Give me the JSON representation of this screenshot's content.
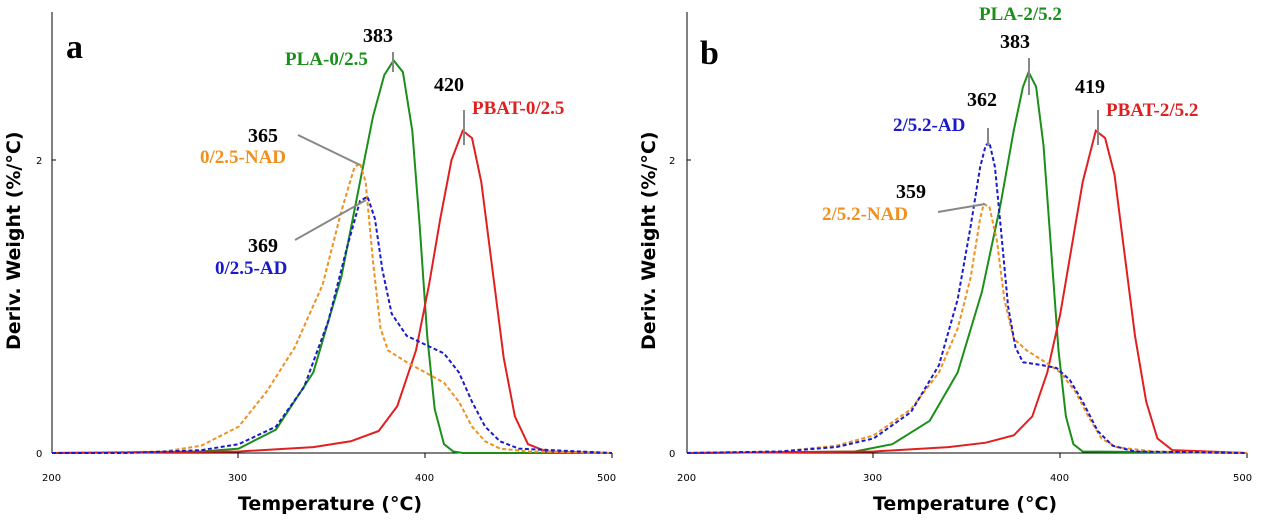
{
  "chart_data": [
    {
      "type": "line",
      "panel_label": "a",
      "xlabel": "Temperature (°C)",
      "ylabel": "Deriv. Weight (%/°C)",
      "xlim": [
        200,
        500
      ],
      "ylim": [
        0,
        2.9
      ],
      "xticks": [
        "200",
        "300",
        "400",
        "500"
      ],
      "yticks": [
        "0",
        "2"
      ],
      "series": [
        {
          "name": "PLA-0/2.5",
          "color": "#1a8f1a",
          "style": "solid",
          "points": [
            [
              200,
              0
            ],
            [
              280,
              0.01
            ],
            [
              300,
              0.03
            ],
            [
              320,
              0.16
            ],
            [
              340,
              0.55
            ],
            [
              355,
              1.2
            ],
            [
              365,
              1.85
            ],
            [
              372,
              2.3
            ],
            [
              378,
              2.58
            ],
            [
              383,
              2.68
            ],
            [
              388,
              2.6
            ],
            [
              393,
              2.2
            ],
            [
              397,
              1.55
            ],
            [
              401,
              0.8
            ],
            [
              405,
              0.3
            ],
            [
              410,
              0.06
            ],
            [
              415,
              0.01
            ],
            [
              420,
              0
            ],
            [
              500,
              0
            ]
          ]
        },
        {
          "name": "PBAT-0/2.5",
          "color": "#e02020",
          "style": "solid",
          "points": [
            [
              200,
              0
            ],
            [
              300,
              0.01
            ],
            [
              340,
              0.04
            ],
            [
              360,
              0.08
            ],
            [
              375,
              0.15
            ],
            [
              385,
              0.32
            ],
            [
              395,
              0.7
            ],
            [
              402,
              1.15
            ],
            [
              408,
              1.6
            ],
            [
              414,
              2.0
            ],
            [
              420,
              2.2
            ],
            [
              425,
              2.15
            ],
            [
              430,
              1.85
            ],
            [
              436,
              1.25
            ],
            [
              442,
              0.65
            ],
            [
              448,
              0.25
            ],
            [
              455,
              0.06
            ],
            [
              465,
              0.01
            ],
            [
              500,
              0
            ]
          ]
        },
        {
          "name": "0/2.5-NAD",
          "color": "#f0901e",
          "style": "dashed",
          "points": [
            [
              200,
              0
            ],
            [
              260,
              0.01
            ],
            [
              280,
              0.05
            ],
            [
              300,
              0.18
            ],
            [
              315,
              0.42
            ],
            [
              330,
              0.72
            ],
            [
              345,
              1.15
            ],
            [
              355,
              1.65
            ],
            [
              362,
              1.95
            ],
            [
              365,
              1.98
            ],
            [
              368,
              1.85
            ],
            [
              372,
              1.3
            ],
            [
              376,
              0.85
            ],
            [
              380,
              0.7
            ],
            [
              390,
              0.62
            ],
            [
              400,
              0.55
            ],
            [
              410,
              0.48
            ],
            [
              418,
              0.35
            ],
            [
              425,
              0.18
            ],
            [
              432,
              0.08
            ],
            [
              440,
              0.03
            ],
            [
              455,
              0.01
            ],
            [
              500,
              0
            ]
          ]
        },
        {
          "name": "0/2.5-AD",
          "color": "#1a1acc",
          "style": "dashed",
          "points": [
            [
              200,
              0
            ],
            [
              240,
              0
            ],
            [
              280,
              0.02
            ],
            [
              300,
              0.06
            ],
            [
              320,
              0.18
            ],
            [
              335,
              0.45
            ],
            [
              348,
              0.9
            ],
            [
              358,
              1.4
            ],
            [
              365,
              1.72
            ],
            [
              369,
              1.75
            ],
            [
              373,
              1.6
            ],
            [
              377,
              1.25
            ],
            [
              382,
              0.95
            ],
            [
              390,
              0.8
            ],
            [
              400,
              0.74
            ],
            [
              410,
              0.68
            ],
            [
              418,
              0.55
            ],
            [
              425,
              0.35
            ],
            [
              432,
              0.18
            ],
            [
              440,
              0.08
            ],
            [
              450,
              0.03
            ],
            [
              500,
              0
            ]
          ]
        }
      ],
      "annotations": [
        {
          "value": "383",
          "series": "PLA-0/2.5"
        },
        {
          "value": "420",
          "series": "PBAT-0/2.5"
        },
        {
          "value": "365",
          "series": "0/2.5-NAD"
        },
        {
          "value": "369",
          "series": "0/2.5-AD"
        }
      ]
    },
    {
      "type": "line",
      "panel_label": "b",
      "xlabel": "Temperature (°C)",
      "ylabel": "Deriv. Weight (%/°C)",
      "xlim": [
        200,
        500
      ],
      "ylim": [
        0,
        2.9
      ],
      "xticks": [
        "200",
        "300",
        "400",
        "500"
      ],
      "yticks": [
        "0",
        "2"
      ],
      "series": [
        {
          "name": "PLA-2/5.2",
          "color": "#1a8f1a",
          "style": "solid",
          "points": [
            [
              200,
              0
            ],
            [
              290,
              0.01
            ],
            [
              310,
              0.06
            ],
            [
              330,
              0.22
            ],
            [
              345,
              0.55
            ],
            [
              358,
              1.1
            ],
            [
              368,
              1.7
            ],
            [
              375,
              2.2
            ],
            [
              380,
              2.5
            ],
            [
              383,
              2.6
            ],
            [
              387,
              2.5
            ],
            [
              391,
              2.1
            ],
            [
              395,
              1.4
            ],
            [
              399,
              0.7
            ],
            [
              403,
              0.25
            ],
            [
              407,
              0.06
            ],
            [
              412,
              0.01
            ],
            [
              500,
              0
            ]
          ]
        },
        {
          "name": "PBAT-2/5.2",
          "color": "#e02020",
          "style": "solid",
          "points": [
            [
              200,
              0
            ],
            [
              300,
              0.01
            ],
            [
              340,
              0.04
            ],
            [
              360,
              0.07
            ],
            [
              375,
              0.12
            ],
            [
              385,
              0.25
            ],
            [
              393,
              0.55
            ],
            [
              400,
              0.95
            ],
            [
              406,
              1.4
            ],
            [
              412,
              1.85
            ],
            [
              419,
              2.2
            ],
            [
              424,
              2.15
            ],
            [
              429,
              1.9
            ],
            [
              434,
              1.4
            ],
            [
              440,
              0.8
            ],
            [
              446,
              0.35
            ],
            [
              452,
              0.1
            ],
            [
              460,
              0.02
            ],
            [
              500,
              0
            ]
          ]
        },
        {
          "name": "2/5.2-NAD",
          "color": "#f0901e",
          "style": "dashed",
          "points": [
            [
              200,
              0
            ],
            [
              250,
              0.01
            ],
            [
              280,
              0.05
            ],
            [
              300,
              0.12
            ],
            [
              320,
              0.3
            ],
            [
              335,
              0.55
            ],
            [
              345,
              0.85
            ],
            [
              352,
              1.2
            ],
            [
              357,
              1.6
            ],
            [
              359,
              1.7
            ],
            [
              362,
              1.68
            ],
            [
              366,
              1.45
            ],
            [
              370,
              1.05
            ],
            [
              375,
              0.78
            ],
            [
              382,
              0.7
            ],
            [
              392,
              0.62
            ],
            [
              400,
              0.55
            ],
            [
              408,
              0.42
            ],
            [
              415,
              0.25
            ],
            [
              422,
              0.1
            ],
            [
              430,
              0.04
            ],
            [
              450,
              0.01
            ],
            [
              500,
              0
            ]
          ]
        },
        {
          "name": "2/5.2-AD",
          "color": "#1a1acc",
          "style": "dashed",
          "points": [
            [
              200,
              0
            ],
            [
              250,
              0.01
            ],
            [
              280,
              0.04
            ],
            [
              300,
              0.1
            ],
            [
              320,
              0.28
            ],
            [
              335,
              0.6
            ],
            [
              345,
              1.05
            ],
            [
              352,
              1.55
            ],
            [
              357,
              1.95
            ],
            [
              360,
              2.1
            ],
            [
              362,
              2.12
            ],
            [
              365,
              1.95
            ],
            [
              368,
              1.55
            ],
            [
              372,
              1.0
            ],
            [
              376,
              0.72
            ],
            [
              380,
              0.62
            ],
            [
              390,
              0.6
            ],
            [
              398,
              0.58
            ],
            [
              405,
              0.5
            ],
            [
              412,
              0.35
            ],
            [
              420,
              0.15
            ],
            [
              428,
              0.05
            ],
            [
              440,
              0.01
            ],
            [
              500,
              0
            ]
          ]
        }
      ],
      "annotations": [
        {
          "value": "383",
          "series": "PLA-2/5.2"
        },
        {
          "value": "419",
          "series": "PBAT-2/5.2"
        },
        {
          "value": "359",
          "series": "2/5.2-NAD"
        },
        {
          "value": "362",
          "series": "2/5.2-AD"
        }
      ]
    }
  ]
}
